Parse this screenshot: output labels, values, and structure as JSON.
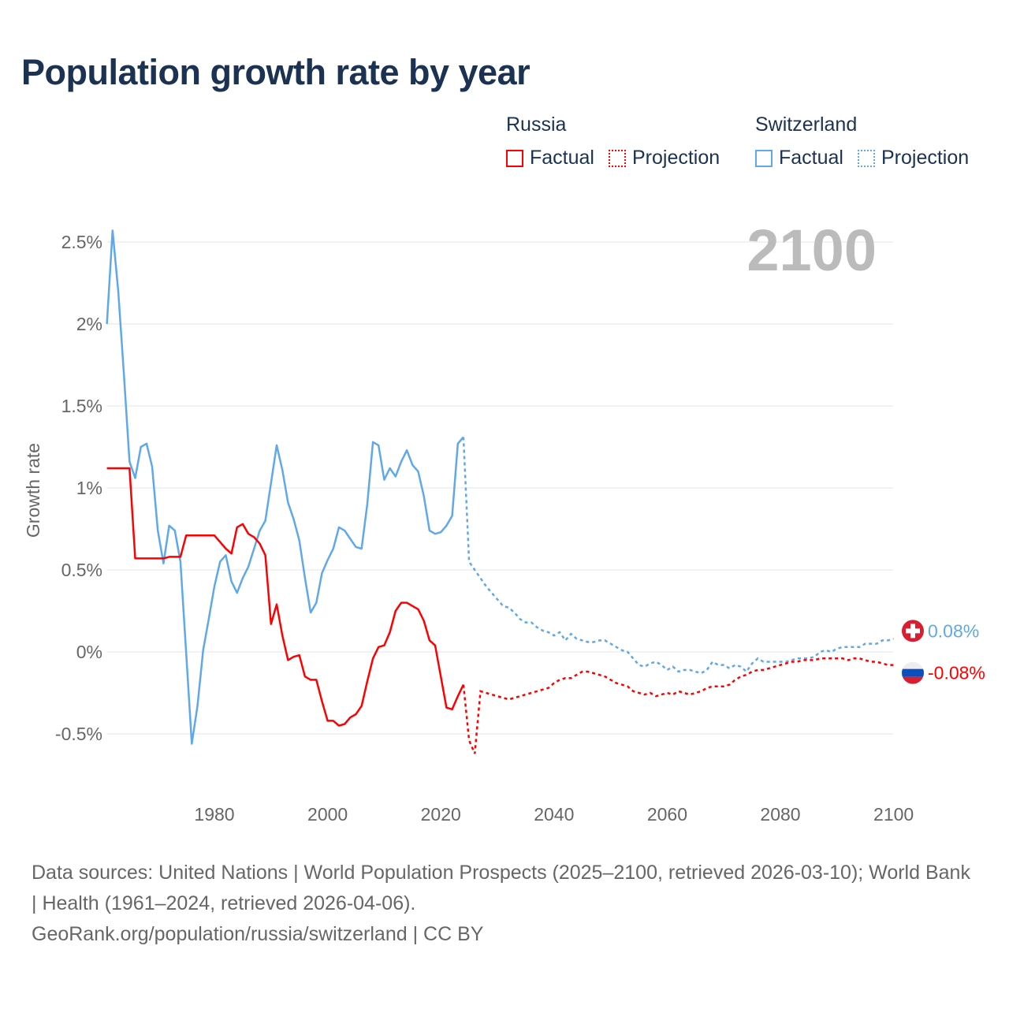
{
  "title": "Population growth rate by year",
  "legend": {
    "russia": {
      "name": "Russia",
      "factual": "Factual",
      "projection": "Projection"
    },
    "switzerland": {
      "name": "Switzerland",
      "factual": "Factual",
      "projection": "Projection"
    }
  },
  "current_year_label": "2100",
  "end_labels": {
    "switzerland": "0.08%",
    "russia": "-0.08%"
  },
  "icons": {
    "switzerland": "swiss-flag-icon",
    "russia": "russian-flag-icon"
  },
  "colors": {
    "russia": "#ff0000",
    "switzerland": "#5fa8ea",
    "grid": "#e6e6e6",
    "year": "#bbbbbb"
  },
  "footer": {
    "line1": "Data sources: United Nations | World Population Prospects (2025–2100, retrieved 2026-03-10); World Bank | Health (1961–2024, retrieved 2026-04-06).",
    "line2": "GeoRank.org/population/russia/switzerland | CC BY"
  },
  "chart_data": {
    "type": "line",
    "title": "Population growth rate by year",
    "xlabel": "",
    "ylabel": "Growth rate",
    "xlim": [
      1961,
      2100
    ],
    "ylim": [
      -0.75,
      2.6
    ],
    "x_ticks": [
      1980,
      2000,
      2020,
      2040,
      2060,
      2080,
      2100
    ],
    "y_ticks": [
      2.5,
      2,
      1.5,
      1,
      0.5,
      0,
      -0.5
    ],
    "y_tick_labels": [
      "2.5%",
      "2%",
      "1.5%",
      "1%",
      "0.5%",
      "0%",
      "-0.5%"
    ],
    "grid": true,
    "legend_placement": "top-right",
    "series": [
      {
        "name": "Switzerland",
        "key": "switzerland",
        "factual_start": 1961,
        "factual": [
          2.0,
          2.57,
          2.2,
          1.7,
          1.16,
          1.06,
          1.25,
          1.27,
          1.13,
          0.74,
          0.54,
          0.77,
          0.74,
          0.55,
          0.0,
          -0.56,
          -0.33,
          0.01,
          0.2,
          0.4,
          0.55,
          0.59,
          0.43,
          0.36,
          0.45,
          0.52,
          0.63,
          0.74,
          0.8,
          1.03,
          1.26,
          1.11,
          0.91,
          0.81,
          0.68,
          0.45,
          0.24,
          0.3,
          0.48,
          0.56,
          0.63,
          0.76,
          0.74,
          0.69,
          0.64,
          0.63,
          0.9,
          1.28,
          1.26,
          1.05,
          1.12,
          1.07,
          1.16,
          1.23,
          1.14,
          1.1,
          0.95,
          0.74,
          0.72,
          0.73,
          0.77,
          0.83,
          1.27,
          1.31
        ],
        "projection_start": 2025,
        "projection": [
          0.55,
          0.5,
          0.45,
          0.4,
          0.36,
          0.32,
          0.28,
          0.27,
          0.24,
          0.2,
          0.18,
          0.18,
          0.15,
          0.13,
          0.12,
          0.1,
          0.12,
          0.07,
          0.11,
          0.08,
          0.07,
          0.06,
          0.06,
          0.07,
          0.07,
          0.05,
          0.03,
          0.01,
          0.0,
          -0.04,
          -0.08,
          -0.09,
          -0.07,
          -0.06,
          -0.08,
          -0.11,
          -0.09,
          -0.12,
          -0.11,
          -0.11,
          -0.12,
          -0.13,
          -0.11,
          -0.06,
          -0.08,
          -0.08,
          -0.1,
          -0.08,
          -0.09,
          -0.12,
          -0.07,
          -0.04,
          -0.06,
          -0.06,
          -0.06,
          -0.06,
          -0.06,
          -0.05,
          -0.04,
          -0.04,
          -0.04,
          -0.03,
          0.0,
          0.01,
          0.0,
          0.02,
          0.03,
          0.03,
          0.03,
          0.03,
          0.05,
          0.05,
          0.05,
          0.07,
          0.07,
          0.08
        ]
      },
      {
        "name": "Russia",
        "key": "russia",
        "factual_start": 1961,
        "factual": [
          1.12,
          1.12,
          1.12,
          1.12,
          1.12,
          0.57,
          0.57,
          0.57,
          0.57,
          0.57,
          0.57,
          0.58,
          0.58,
          0.58,
          0.71,
          0.71,
          0.71,
          0.71,
          0.71,
          0.71,
          0.67,
          0.63,
          0.6,
          0.76,
          0.78,
          0.72,
          0.7,
          0.66,
          0.59,
          0.17,
          0.29,
          0.1,
          -0.05,
          -0.03,
          -0.02,
          -0.15,
          -0.17,
          -0.17,
          -0.3,
          -0.42,
          -0.42,
          -0.45,
          -0.44,
          -0.4,
          -0.38,
          -0.33,
          -0.18,
          -0.04,
          0.03,
          0.04,
          0.12,
          0.25,
          0.3,
          0.3,
          0.28,
          0.26,
          0.19,
          0.07,
          0.04,
          -0.15,
          -0.34,
          -0.35,
          -0.27,
          -0.2
        ],
        "projection_start": 2025,
        "projection": [
          -0.54,
          -0.62,
          -0.24,
          -0.25,
          -0.26,
          -0.27,
          -0.28,
          -0.29,
          -0.28,
          -0.27,
          -0.26,
          -0.25,
          -0.24,
          -0.23,
          -0.22,
          -0.19,
          -0.17,
          -0.16,
          -0.16,
          -0.14,
          -0.12,
          -0.12,
          -0.13,
          -0.14,
          -0.15,
          -0.17,
          -0.19,
          -0.2,
          -0.21,
          -0.24,
          -0.25,
          -0.26,
          -0.25,
          -0.27,
          -0.26,
          -0.25,
          -0.26,
          -0.24,
          -0.25,
          -0.26,
          -0.25,
          -0.24,
          -0.22,
          -0.21,
          -0.21,
          -0.21,
          -0.2,
          -0.17,
          -0.15,
          -0.14,
          -0.12,
          -0.11,
          -0.11,
          -0.1,
          -0.09,
          -0.08,
          -0.07,
          -0.06,
          -0.06,
          -0.05,
          -0.05,
          -0.05,
          -0.04,
          -0.04,
          -0.04,
          -0.04,
          -0.04,
          -0.05,
          -0.04,
          -0.04,
          -0.05,
          -0.06,
          -0.06,
          -0.07,
          -0.08,
          -0.08
        ]
      }
    ]
  }
}
